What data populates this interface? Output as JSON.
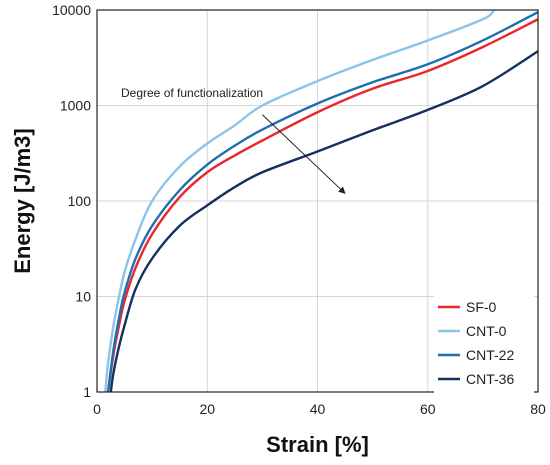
{
  "chart_data": {
    "type": "line",
    "title": "",
    "xlabel": "Strain [%]",
    "ylabel": "Energy [J/m3]",
    "xlim": [
      0,
      80
    ],
    "ylim": [
      1,
      10000
    ],
    "yscale": "log",
    "grid": true,
    "legend_position": "bottom-right",
    "x_ticks": [
      "0",
      "20",
      "40",
      "60",
      "80"
    ],
    "y_ticks": [
      "1",
      "10",
      "100",
      "1000",
      "10000"
    ],
    "annotation": {
      "text": "Degree of functionalization",
      "arrow_from": [
        30,
        800
      ],
      "arrow_to": [
        45,
        120
      ]
    },
    "series": [
      {
        "name": "SF-0",
        "color": "#e8282c",
        "x": [
          2,
          3,
          4,
          5,
          7,
          10,
          15,
          20,
          25,
          30,
          40,
          50,
          60,
          70,
          80
        ],
        "y": [
          1,
          2.5,
          5,
          9,
          20,
          45,
          110,
          200,
          300,
          430,
          850,
          1500,
          2300,
          4100,
          8000
        ]
      },
      {
        "name": "CNT-0",
        "color": "#8cc4e6",
        "x": [
          1.5,
          2,
          3,
          4,
          5,
          7,
          10,
          15,
          20,
          25,
          30,
          40,
          50,
          60,
          70,
          72
        ],
        "y": [
          1,
          2,
          5,
          10,
          18,
          40,
          100,
          230,
          400,
          620,
          1000,
          1800,
          3000,
          4800,
          8000,
          10000
        ]
      },
      {
        "name": "CNT-22",
        "color": "#1f6fae",
        "x": [
          2,
          3,
          4,
          5,
          7,
          10,
          15,
          20,
          25,
          30,
          40,
          50,
          60,
          70,
          80
        ],
        "y": [
          1,
          2.8,
          6,
          11,
          25,
          55,
          130,
          240,
          380,
          560,
          1050,
          1750,
          2700,
          4800,
          9500
        ]
      },
      {
        "name": "CNT-36",
        "color": "#14305e",
        "x": [
          2.5,
          3,
          4,
          5,
          7,
          10,
          15,
          20,
          25,
          30,
          40,
          50,
          60,
          70,
          80
        ],
        "y": [
          1,
          1.6,
          3,
          5,
          12,
          25,
          55,
          90,
          140,
          200,
          330,
          550,
          900,
          1600,
          3700
        ]
      }
    ]
  }
}
